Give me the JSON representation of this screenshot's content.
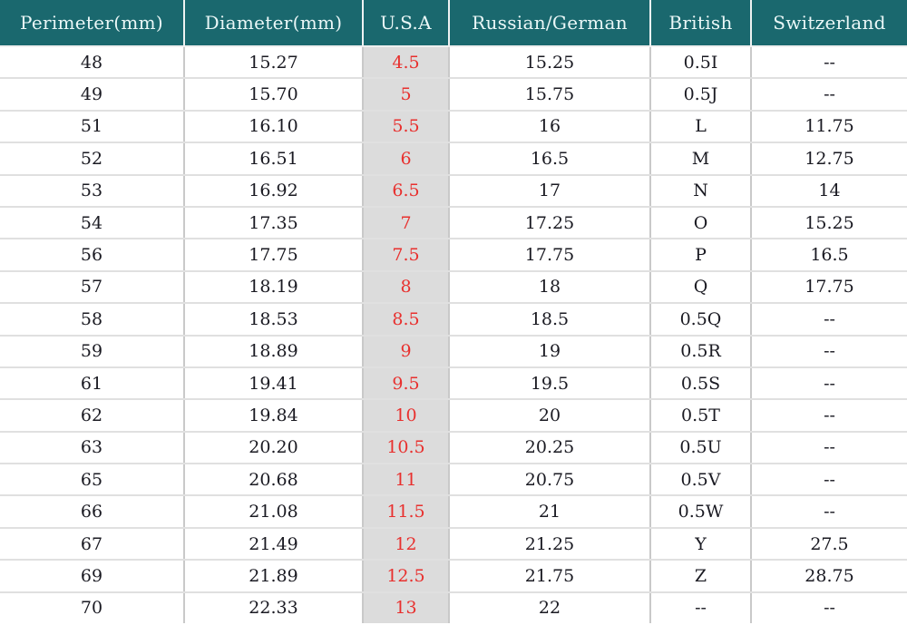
{
  "chart_data": {
    "type": "table",
    "columns": [
      "Perimeter(mm)",
      "Diameter(mm)",
      "U.S.A",
      "Russian/German",
      "British",
      "Switzerland"
    ],
    "column_keys": [
      "perimeter-mm",
      "diameter-mm",
      "usa",
      "russian-german",
      "british",
      "switzerland"
    ],
    "rows": [
      [
        "48",
        "15.27",
        "4.5",
        "15.25",
        "0.5I",
        "--"
      ],
      [
        "49",
        "15.70",
        "5",
        "15.75",
        "0.5J",
        "--"
      ],
      [
        "51",
        "16.10",
        "5.5",
        "16",
        "L",
        "11.75"
      ],
      [
        "52",
        "16.51",
        "6",
        "16.5",
        "M",
        "12.75"
      ],
      [
        "53",
        "16.92",
        "6.5",
        "17",
        "N",
        "14"
      ],
      [
        "54",
        "17.35",
        "7",
        "17.25",
        "O",
        "15.25"
      ],
      [
        "56",
        "17.75",
        "7.5",
        "17.75",
        "P",
        "16.5"
      ],
      [
        "57",
        "18.19",
        "8",
        "18",
        "Q",
        "17.75"
      ],
      [
        "58",
        "18.53",
        "8.5",
        "18.5",
        "0.5Q",
        "--"
      ],
      [
        "59",
        "18.89",
        "9",
        "19",
        "0.5R",
        "--"
      ],
      [
        "61",
        "19.41",
        "9.5",
        "19.5",
        "0.5S",
        "--"
      ],
      [
        "62",
        "19.84",
        "10",
        "20",
        "0.5T",
        "--"
      ],
      [
        "63",
        "20.20",
        "10.5",
        "20.25",
        "0.5U",
        "--"
      ],
      [
        "65",
        "20.68",
        "11",
        "20.75",
        "0.5V",
        "--"
      ],
      [
        "66",
        "21.08",
        "11.5",
        "21",
        "0.5W",
        "--"
      ],
      [
        "67",
        "21.49",
        "12",
        "21.25",
        "Y",
        "27.5"
      ],
      [
        "69",
        "21.89",
        "12.5",
        "21.75",
        "Z",
        "28.75"
      ],
      [
        "70",
        "22.33",
        "13",
        "22",
        "--",
        "--"
      ]
    ],
    "highlighted_column": "U.S.A"
  },
  "colors": {
    "header_bg": "#1a686e",
    "header_text": "#eaf7f7",
    "usa_bg": "#dcdcdc",
    "usa_text": "#e8302e",
    "cell_text": "#1a1a22"
  }
}
